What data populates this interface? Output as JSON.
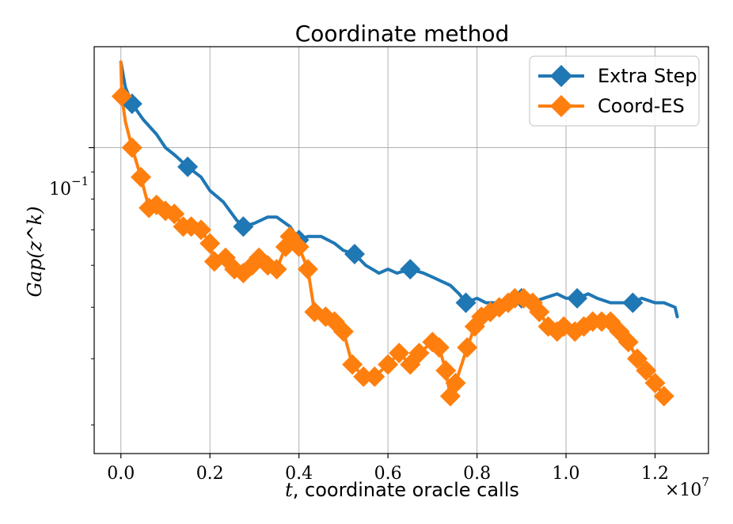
{
  "chart_data": {
    "type": "line",
    "title": "Coordinate method",
    "xlabel_var": "t",
    "xlabel_text": ", coordinate oracle calls",
    "ylabel": "Gap(z^k)",
    "y_scale": "log",
    "xlim": [
      -0.06,
      1.32
    ],
    "ylim": [
      0.0265,
      0.155
    ],
    "x_ticks": [
      0.0,
      0.2,
      0.4,
      0.6,
      0.8,
      1.0,
      1.2
    ],
    "x_tick_labels": [
      "0.0",
      "0.2",
      "0.4",
      "0.6",
      "0.8",
      "1.0",
      "1.2"
    ],
    "x_multiplier": "×10",
    "x_multiplier_exp": "7",
    "y_tick_label_base": "10",
    "y_tick_label_exp": "−1",
    "y_tick_value": 0.1,
    "y_minor_ticks": [
      0.03,
      0.04,
      0.05,
      0.06,
      0.07,
      0.08,
      0.09
    ],
    "grid": true,
    "legend_position": "top-right",
    "series": [
      {
        "name": "Extra Step",
        "color": "#1f77b4",
        "x": [
          0.0,
          0.01,
          0.025,
          0.05,
          0.08,
          0.1,
          0.12,
          0.15,
          0.18,
          0.2,
          0.23,
          0.26,
          0.275,
          0.3,
          0.33,
          0.35,
          0.38,
          0.4,
          0.42,
          0.45,
          0.48,
          0.5,
          0.525,
          0.55,
          0.58,
          0.6,
          0.62,
          0.65,
          0.68,
          0.7,
          0.72,
          0.74,
          0.76,
          0.775,
          0.8,
          0.82,
          0.85,
          0.88,
          0.9,
          0.92,
          0.95,
          0.98,
          1.0,
          1.025,
          1.05,
          1.07,
          1.1,
          1.12,
          1.15,
          1.17,
          1.2,
          1.22,
          1.245,
          1.25
        ],
        "y": [
          0.145,
          0.13,
          0.121,
          0.113,
          0.106,
          0.1,
          0.097,
          0.092,
          0.088,
          0.083,
          0.079,
          0.073,
          0.071,
          0.072,
          0.074,
          0.074,
          0.071,
          0.067,
          0.068,
          0.068,
          0.066,
          0.064,
          0.063,
          0.06,
          0.058,
          0.059,
          0.058,
          0.059,
          0.058,
          0.057,
          0.056,
          0.055,
          0.053,
          0.051,
          0.052,
          0.051,
          0.051,
          0.052,
          0.052,
          0.051,
          0.052,
          0.053,
          0.052,
          0.052,
          0.053,
          0.052,
          0.051,
          0.051,
          0.051,
          0.052,
          0.051,
          0.051,
          0.05,
          0.048
        ],
        "marker_indices": [
          2,
          7,
          12,
          17,
          22,
          27,
          33,
          38,
          43,
          48
        ]
      },
      {
        "name": "Coord-ES",
        "color": "#ff7f0e",
        "x": [
          0.0,
          0.002,
          0.01,
          0.025,
          0.045,
          0.063,
          0.08,
          0.1,
          0.12,
          0.14,
          0.158,
          0.18,
          0.2,
          0.21,
          0.235,
          0.255,
          0.275,
          0.295,
          0.31,
          0.33,
          0.35,
          0.37,
          0.38,
          0.4,
          0.42,
          0.435,
          0.46,
          0.48,
          0.5,
          0.52,
          0.545,
          0.57,
          0.6,
          0.625,
          0.65,
          0.67,
          0.7,
          0.715,
          0.73,
          0.74,
          0.752,
          0.778,
          0.795,
          0.81,
          0.83,
          0.85,
          0.87,
          0.885,
          0.905,
          0.925,
          0.94,
          0.96,
          0.98,
          0.995,
          1.02,
          1.04,
          1.06,
          1.08,
          1.1,
          1.12,
          1.14,
          1.16,
          1.18,
          1.2,
          1.22
        ],
        "y": [
          0.145,
          0.125,
          0.112,
          0.1,
          0.088,
          0.077,
          0.078,
          0.076,
          0.075,
          0.071,
          0.071,
          0.07,
          0.066,
          0.061,
          0.062,
          0.059,
          0.058,
          0.06,
          0.062,
          0.06,
          0.059,
          0.065,
          0.068,
          0.065,
          0.059,
          0.049,
          0.048,
          0.047,
          0.045,
          0.039,
          0.037,
          0.037,
          0.039,
          0.041,
          0.039,
          0.041,
          0.043,
          0.042,
          0.038,
          0.034,
          0.036,
          0.042,
          0.046,
          0.048,
          0.049,
          0.05,
          0.051,
          0.052,
          0.052,
          0.051,
          0.049,
          0.046,
          0.045,
          0.046,
          0.045,
          0.046,
          0.047,
          0.047,
          0.047,
          0.045,
          0.043,
          0.04,
          0.038,
          0.036,
          0.034
        ],
        "marker_indices": [
          1,
          3,
          4,
          5,
          6,
          7,
          8,
          9,
          10,
          11,
          12,
          13,
          14,
          15,
          16,
          17,
          18,
          19,
          20,
          21,
          22,
          23,
          24,
          25,
          26,
          27,
          28,
          29,
          30,
          31,
          32,
          33,
          34,
          35,
          36,
          37,
          38,
          39,
          40,
          41,
          42,
          43,
          44,
          45,
          46,
          47,
          48,
          49,
          50,
          51,
          52,
          53,
          54,
          55,
          56,
          57,
          58,
          59,
          60,
          61,
          62,
          63,
          64
        ]
      }
    ]
  }
}
